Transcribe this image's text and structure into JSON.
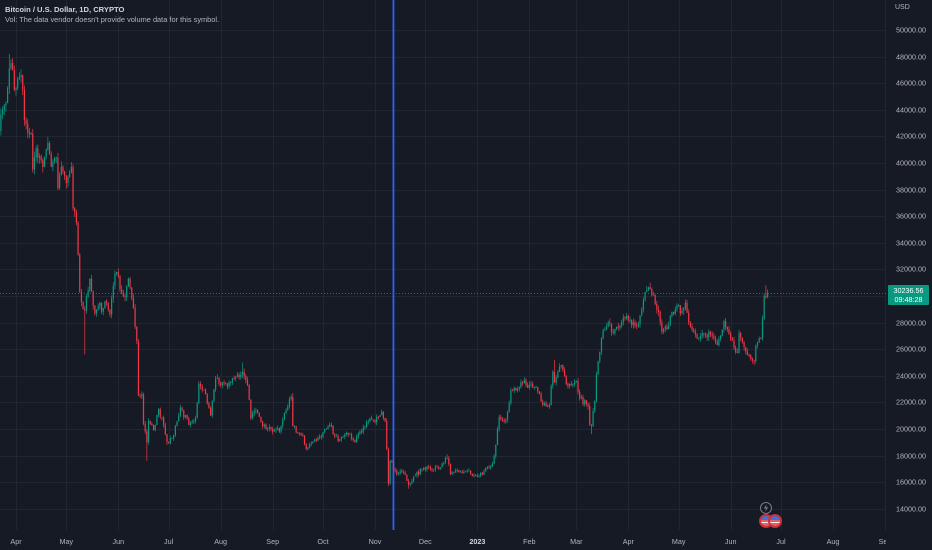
{
  "header": {
    "title": "Bitcoin / U.S. Dollar, 1D, CRYPTO",
    "vol_notice": "Vol: The data vendor doesn't provide volume data for this symbol."
  },
  "price_axis": {
    "currency": "USD",
    "last_price": "30236.56",
    "countdown": "09:48:28"
  },
  "colors": {
    "background": "#161a25",
    "grid": "#222631",
    "up": "#089981",
    "down": "#f23645",
    "vertical_line": "#2962ff",
    "axis_text": "#b2b5be"
  },
  "events": [
    {
      "icon": "lightning-icon"
    },
    {
      "icon": "us-flag-icon"
    },
    {
      "icon": "us-flag-icon"
    }
  ],
  "chart_data": {
    "type": "candlestick",
    "title": "Bitcoin / U.S. Dollar, 1D, CRYPTO",
    "xlabel": "",
    "ylabel": "USD",
    "ylim": [
      12400,
      52250
    ],
    "xlim": [
      "2022-03-22",
      "2023-09-01"
    ],
    "grid": true,
    "yticks": [
      {
        "value": 50000,
        "label": "50000.00"
      },
      {
        "value": 48000,
        "label": "48000.00"
      },
      {
        "value": 46000,
        "label": "46000.00"
      },
      {
        "value": 44000,
        "label": "44000.00"
      },
      {
        "value": 42000,
        "label": "42000.00"
      },
      {
        "value": 40000,
        "label": "40000.00"
      },
      {
        "value": 38000,
        "label": "38000.00"
      },
      {
        "value": 36000,
        "label": "36000.00"
      },
      {
        "value": 34000,
        "label": "34000.00"
      },
      {
        "value": 32000,
        "label": "32000.00"
      },
      {
        "value": 28000,
        "label": "28000.00"
      },
      {
        "value": 26000,
        "label": "26000.00"
      },
      {
        "value": 24000,
        "label": "24000.00"
      },
      {
        "value": 22000,
        "label": "22000.00"
      },
      {
        "value": 20000,
        "label": "20000.00"
      },
      {
        "value": 18000,
        "label": "18000.00"
      },
      {
        "value": 16000,
        "label": "16000.00"
      },
      {
        "value": 14000,
        "label": "14000.00"
      }
    ],
    "grid_only_yticks": [
      30000
    ],
    "xticks": [
      {
        "label": "Apr",
        "date": "2022-04-01"
      },
      {
        "label": "May",
        "date": "2022-05-01"
      },
      {
        "label": "Jun",
        "date": "2022-06-01"
      },
      {
        "label": "Jul",
        "date": "2022-07-01"
      },
      {
        "label": "Aug",
        "date": "2022-08-01"
      },
      {
        "label": "Sep",
        "date": "2022-09-01"
      },
      {
        "label": "Oct",
        "date": "2022-10-01"
      },
      {
        "label": "Nov",
        "date": "2022-11-01"
      },
      {
        "label": "Dec",
        "date": "2022-12-01"
      },
      {
        "label": "2023",
        "date": "2023-01-01",
        "year": true
      },
      {
        "label": "Feb",
        "date": "2023-02-01"
      },
      {
        "label": "Mar",
        "date": "2023-03-01"
      },
      {
        "label": "Apr",
        "date": "2023-04-01"
      },
      {
        "label": "May",
        "date": "2023-05-01"
      },
      {
        "label": "Jun",
        "date": "2023-06-01"
      },
      {
        "label": "Jul",
        "date": "2023-07-01"
      },
      {
        "label": "Aug",
        "date": "2023-08-01"
      },
      {
        "label": "Sep",
        "date": "2023-09-01"
      }
    ],
    "last_price": 30236.56,
    "annotations": [
      {
        "type": "vertical_line",
        "date": "2022-11-12",
        "color": "#2962ff"
      },
      {
        "type": "price_line",
        "value": 30236.56,
        "color": "#089981"
      }
    ],
    "series": [
      {
        "name": "BTCUSD",
        "points": [
          [
            "2022-03-22",
            42400
          ],
          [
            "2022-03-24",
            44000
          ],
          [
            "2022-03-26",
            44500
          ],
          [
            "2022-03-28",
            47100
          ],
          [
            "2022-03-29",
            47500
          ],
          [
            "2022-03-30",
            47000
          ],
          [
            "2022-03-31",
            45500
          ],
          [
            "2022-04-02",
            46300
          ],
          [
            "2022-04-04",
            46600
          ],
          [
            "2022-04-05",
            45500
          ],
          [
            "2022-04-06",
            43200
          ],
          [
            "2022-04-08",
            42300
          ],
          [
            "2022-04-10",
            42200
          ],
          [
            "2022-04-11",
            39500
          ],
          [
            "2022-04-13",
            41100
          ],
          [
            "2022-04-15",
            40500
          ],
          [
            "2022-04-17",
            39700
          ],
          [
            "2022-04-20",
            41500
          ],
          [
            "2022-04-22",
            39700
          ],
          [
            "2022-04-25",
            40400
          ],
          [
            "2022-04-26",
            38100
          ],
          [
            "2022-04-28",
            39700
          ],
          [
            "2022-05-01",
            38500
          ],
          [
            "2022-05-04",
            39700
          ],
          [
            "2022-05-05",
            36600
          ],
          [
            "2022-05-07",
            35500
          ],
          [
            "2022-05-09",
            30300
          ],
          [
            "2022-05-11",
            29000
          ],
          [
            "2022-05-12",
            28900
          ],
          [
            "2022-05-15",
            31300
          ],
          [
            "2022-05-18",
            28700
          ],
          [
            "2022-05-20",
            29200
          ],
          [
            "2022-05-23",
            29100
          ],
          [
            "2022-05-25",
            29500
          ],
          [
            "2022-05-27",
            28600
          ],
          [
            "2022-05-30",
            31700
          ],
          [
            "2022-05-31",
            31800
          ],
          [
            "2022-06-02",
            30500
          ],
          [
            "2022-06-05",
            29900
          ],
          [
            "2022-06-07",
            31300
          ],
          [
            "2022-06-10",
            29100
          ],
          [
            "2022-06-12",
            26600
          ],
          [
            "2022-06-13",
            22500
          ],
          [
            "2022-06-15",
            22600
          ],
          [
            "2022-06-16",
            20400
          ],
          [
            "2022-06-18",
            19000
          ],
          [
            "2022-06-19",
            20600
          ],
          [
            "2022-06-22",
            19900
          ],
          [
            "2022-06-25",
            21500
          ],
          [
            "2022-06-28",
            20300
          ],
          [
            "2022-06-30",
            19000
          ],
          [
            "2022-07-03",
            19300
          ],
          [
            "2022-07-05",
            20200
          ],
          [
            "2022-07-08",
            21600
          ],
          [
            "2022-07-13",
            20300
          ],
          [
            "2022-07-17",
            20800
          ],
          [
            "2022-07-19",
            23400
          ],
          [
            "2022-07-20",
            23200
          ],
          [
            "2022-07-23",
            22600
          ],
          [
            "2022-07-26",
            21000
          ],
          [
            "2022-07-29",
            23800
          ],
          [
            "2022-08-01",
            23300
          ],
          [
            "2022-08-05",
            23200
          ],
          [
            "2022-08-08",
            23800
          ],
          [
            "2022-08-10",
            23900
          ],
          [
            "2022-08-14",
            24300
          ],
          [
            "2022-08-17",
            23300
          ],
          [
            "2022-08-19",
            20800
          ],
          [
            "2022-08-22",
            21400
          ],
          [
            "2022-08-26",
            20200
          ],
          [
            "2022-08-31",
            20000
          ],
          [
            "2022-09-05",
            19800
          ],
          [
            "2022-09-09",
            21400
          ],
          [
            "2022-09-12",
            22400
          ],
          [
            "2022-09-13",
            20200
          ],
          [
            "2022-09-16",
            19700
          ],
          [
            "2022-09-19",
            19500
          ],
          [
            "2022-09-21",
            18500
          ],
          [
            "2022-09-26",
            19200
          ],
          [
            "2022-09-30",
            19400
          ],
          [
            "2022-10-05",
            20300
          ],
          [
            "2022-10-10",
            19100
          ],
          [
            "2022-10-13",
            19400
          ],
          [
            "2022-10-17",
            19600
          ],
          [
            "2022-10-20",
            19000
          ],
          [
            "2022-10-25",
            20100
          ],
          [
            "2022-10-29",
            20800
          ],
          [
            "2022-11-01",
            20500
          ],
          [
            "2022-11-05",
            21300
          ],
          [
            "2022-11-07",
            20600
          ],
          [
            "2022-11-08",
            18500
          ],
          [
            "2022-11-09",
            15900
          ],
          [
            "2022-11-10",
            17600
          ],
          [
            "2022-11-14",
            16600
          ],
          [
            "2022-11-18",
            16700
          ],
          [
            "2022-11-21",
            15800
          ],
          [
            "2022-11-25",
            16500
          ],
          [
            "2022-11-30",
            17100
          ],
          [
            "2022-12-05",
            16900
          ],
          [
            "2022-12-10",
            17100
          ],
          [
            "2022-12-13",
            17800
          ],
          [
            "2022-12-14",
            17800
          ],
          [
            "2022-12-16",
            16600
          ],
          [
            "2022-12-20",
            16900
          ],
          [
            "2022-12-25",
            16800
          ],
          [
            "2022-12-31",
            16500
          ],
          [
            "2023-01-05",
            16800
          ],
          [
            "2023-01-08",
            17100
          ],
          [
            "2023-01-10",
            17400
          ],
          [
            "2023-01-12",
            18800
          ],
          [
            "2023-01-14",
            20900
          ],
          [
            "2023-01-18",
            20700
          ],
          [
            "2023-01-21",
            22900
          ],
          [
            "2023-01-25",
            23000
          ],
          [
            "2023-01-29",
            23700
          ],
          [
            "2023-01-31",
            23100
          ],
          [
            "2023-02-02",
            23400
          ],
          [
            "2023-02-06",
            22800
          ],
          [
            "2023-02-09",
            21800
          ],
          [
            "2023-02-13",
            21800
          ],
          [
            "2023-02-15",
            24300
          ],
          [
            "2023-02-16",
            23500
          ],
          [
            "2023-02-20",
            24800
          ],
          [
            "2023-02-24",
            23200
          ],
          [
            "2023-03-01",
            23600
          ],
          [
            "2023-03-03",
            22300
          ],
          [
            "2023-03-08",
            21700
          ],
          [
            "2023-03-09",
            20300
          ],
          [
            "2023-03-10",
            20200
          ],
          [
            "2023-03-12",
            22100
          ],
          [
            "2023-03-13",
            24100
          ],
          [
            "2023-03-17",
            27400
          ],
          [
            "2023-03-20",
            28000
          ],
          [
            "2023-03-22",
            27300
          ],
          [
            "2023-03-24",
            27500
          ],
          [
            "2023-03-29",
            28400
          ],
          [
            "2023-03-31",
            28500
          ],
          [
            "2023-04-03",
            27800
          ],
          [
            "2023-04-07",
            27900
          ],
          [
            "2023-04-10",
            29700
          ],
          [
            "2023-04-11",
            30300
          ],
          [
            "2023-04-14",
            30500
          ],
          [
            "2023-04-17",
            29400
          ],
          [
            "2023-04-19",
            28800
          ],
          [
            "2023-04-21",
            27300
          ],
          [
            "2023-04-24",
            27500
          ],
          [
            "2023-04-26",
            28500
          ],
          [
            "2023-04-30",
            29300
          ],
          [
            "2023-05-02",
            28700
          ],
          [
            "2023-05-05",
            29500
          ],
          [
            "2023-05-08",
            27700
          ],
          [
            "2023-05-12",
            26800
          ],
          [
            "2023-05-15",
            27200
          ],
          [
            "2023-05-20",
            27100
          ],
          [
            "2023-05-24",
            26300
          ],
          [
            "2023-05-28",
            28100
          ],
          [
            "2023-06-01",
            26800
          ],
          [
            "2023-06-05",
            25700
          ],
          [
            "2023-06-06",
            27200
          ],
          [
            "2023-06-10",
            25800
          ],
          [
            "2023-06-15",
            25100
          ],
          [
            "2023-06-16",
            26300
          ],
          [
            "2023-06-19",
            26800
          ],
          [
            "2023-06-20",
            28300
          ],
          [
            "2023-06-21",
            30000
          ],
          [
            "2023-06-22",
            29900
          ],
          [
            "2023-06-23",
            30236.56
          ]
        ],
        "extremes": [
          {
            "date": "2022-03-28",
            "high": 48200
          },
          {
            "date": "2022-05-12",
            "low": 25600
          },
          {
            "date": "2022-06-18",
            "low": 17600
          },
          {
            "date": "2022-08-14",
            "high": 25000
          },
          {
            "date": "2022-09-13",
            "high": 22700
          },
          {
            "date": "2022-11-05",
            "high": 21450
          },
          {
            "date": "2022-11-09",
            "low": 15700
          },
          {
            "date": "2022-11-21",
            "low": 15500
          },
          {
            "date": "2022-12-14",
            "high": 18100
          },
          {
            "date": "2023-02-16",
            "high": 25200
          },
          {
            "date": "2023-03-10",
            "low": 19600
          },
          {
            "date": "2023-04-14",
            "high": 31000
          },
          {
            "date": "2023-06-15",
            "low": 24800
          },
          {
            "date": "2023-06-22",
            "high": 30800
          }
        ]
      }
    ]
  }
}
